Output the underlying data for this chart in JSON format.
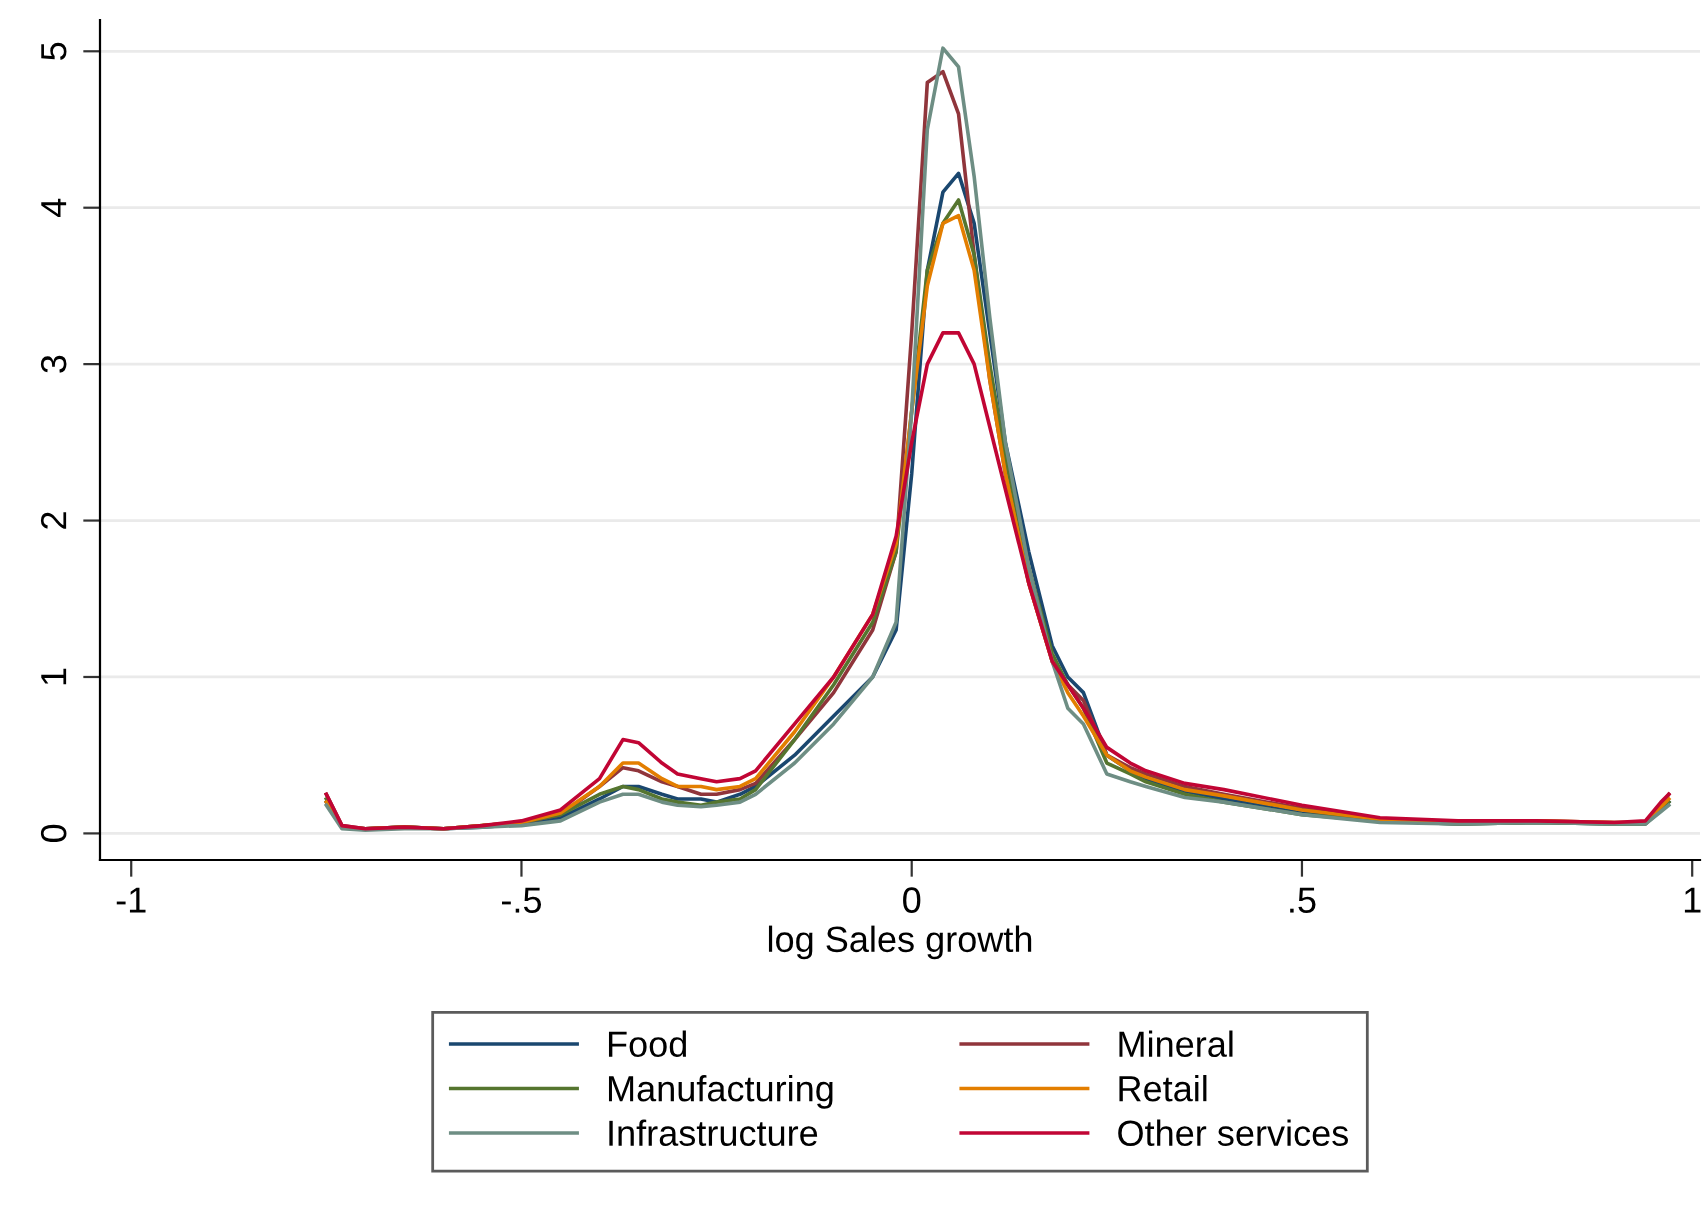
{
  "chart_data": {
    "type": "line",
    "xlabel": "log Sales growth",
    "x": [
      -0.75,
      -0.73,
      -0.7,
      -0.65,
      -0.6,
      -0.55,
      -0.5,
      -0.45,
      -0.4,
      -0.37,
      -0.35,
      -0.32,
      -0.3,
      -0.27,
      -0.25,
      -0.22,
      -0.2,
      -0.15,
      -0.1,
      -0.05,
      -0.02,
      0,
      0.02,
      0.04,
      0.06,
      0.08,
      0.1,
      0.12,
      0.15,
      0.18,
      0.2,
      0.22,
      0.25,
      0.28,
      0.3,
      0.35,
      0.4,
      0.5,
      0.6,
      0.7,
      0.8,
      0.9,
      0.94,
      0.96,
      0.97
    ],
    "series": [
      {
        "name": "Food",
        "color": "#1a476f",
        "values": [
          0.2,
          0.04,
          0.03,
          0.04,
          0.03,
          0.04,
          0.06,
          0.1,
          0.22,
          0.3,
          0.3,
          0.25,
          0.22,
          0.22,
          0.2,
          0.25,
          0.3,
          0.5,
          0.75,
          1.0,
          1.3,
          2.3,
          3.6,
          4.1,
          4.22,
          3.9,
          3.2,
          2.5,
          1.8,
          1.2,
          1.0,
          0.9,
          0.5,
          0.4,
          0.35,
          0.27,
          0.22,
          0.13,
          0.08,
          0.06,
          0.07,
          0.06,
          0.06,
          0.15,
          0.2
        ]
      },
      {
        "name": "Mineral",
        "color": "#90353b",
        "values": [
          0.25,
          0.05,
          0.03,
          0.04,
          0.03,
          0.05,
          0.07,
          0.12,
          0.3,
          0.42,
          0.4,
          0.33,
          0.3,
          0.25,
          0.25,
          0.28,
          0.32,
          0.6,
          0.9,
          1.3,
          1.8,
          3.2,
          4.8,
          4.87,
          4.6,
          3.7,
          2.9,
          2.3,
          1.6,
          1.1,
          0.95,
          0.85,
          0.5,
          0.42,
          0.38,
          0.3,
          0.25,
          0.16,
          0.09,
          0.07,
          0.08,
          0.07,
          0.07,
          0.18,
          0.25
        ]
      },
      {
        "name": "Manufacturing",
        "color": "#55752f",
        "values": [
          0.22,
          0.04,
          0.03,
          0.04,
          0.03,
          0.05,
          0.07,
          0.12,
          0.25,
          0.3,
          0.28,
          0.22,
          0.2,
          0.18,
          0.2,
          0.22,
          0.28,
          0.6,
          0.95,
          1.35,
          1.8,
          2.7,
          3.6,
          3.9,
          4.05,
          3.7,
          3.0,
          2.4,
          1.7,
          1.15,
          0.95,
          0.8,
          0.45,
          0.38,
          0.33,
          0.25,
          0.2,
          0.12,
          0.08,
          0.06,
          0.07,
          0.06,
          0.06,
          0.15,
          0.2
        ]
      },
      {
        "name": "Retail",
        "color": "#e37e00",
        "values": [
          0.2,
          0.04,
          0.03,
          0.04,
          0.03,
          0.05,
          0.07,
          0.13,
          0.3,
          0.45,
          0.45,
          0.35,
          0.3,
          0.3,
          0.28,
          0.3,
          0.35,
          0.65,
          1.0,
          1.4,
          1.85,
          2.7,
          3.5,
          3.9,
          3.95,
          3.6,
          2.9,
          2.3,
          1.6,
          1.1,
          0.9,
          0.75,
          0.5,
          0.4,
          0.36,
          0.28,
          0.24,
          0.15,
          0.09,
          0.07,
          0.08,
          0.07,
          0.07,
          0.17,
          0.22
        ]
      },
      {
        "name": "Infrastructure",
        "color": "#6e8e84",
        "values": [
          0.18,
          0.03,
          0.02,
          0.03,
          0.03,
          0.04,
          0.05,
          0.08,
          0.2,
          0.25,
          0.25,
          0.2,
          0.18,
          0.17,
          0.18,
          0.2,
          0.25,
          0.45,
          0.7,
          1.0,
          1.35,
          2.7,
          4.5,
          5.02,
          4.9,
          4.2,
          3.3,
          2.5,
          1.7,
          1.1,
          0.8,
          0.7,
          0.38,
          0.33,
          0.3,
          0.23,
          0.2,
          0.12,
          0.07,
          0.06,
          0.07,
          0.06,
          0.06,
          0.14,
          0.18
        ]
      },
      {
        "name": "Other services",
        "color": "#c10534",
        "values": [
          0.25,
          0.05,
          0.03,
          0.04,
          0.03,
          0.05,
          0.08,
          0.15,
          0.35,
          0.6,
          0.58,
          0.45,
          0.38,
          0.35,
          0.33,
          0.35,
          0.4,
          0.7,
          1.0,
          1.4,
          1.9,
          2.5,
          3.0,
          3.2,
          3.2,
          3.0,
          2.6,
          2.2,
          1.6,
          1.1,
          0.95,
          0.8,
          0.55,
          0.45,
          0.4,
          0.32,
          0.28,
          0.18,
          0.1,
          0.08,
          0.08,
          0.07,
          0.08,
          0.2,
          0.25
        ]
      }
    ],
    "xlim": [
      -1.04,
      1.01
    ],
    "ylim": [
      -0.17,
      5.2
    ],
    "xticks": [
      {
        "value": -1,
        "label": "-1"
      },
      {
        "value": -0.5,
        "label": "-.5"
      },
      {
        "value": 0,
        "label": "0"
      },
      {
        "value": 0.5,
        "label": ".5"
      },
      {
        "value": 1,
        "label": "1"
      }
    ],
    "yticks": [
      0,
      1,
      2,
      3,
      4,
      5
    ],
    "grid": "y",
    "legend": "bottom",
    "marker": "none",
    "line_style": "solid"
  }
}
